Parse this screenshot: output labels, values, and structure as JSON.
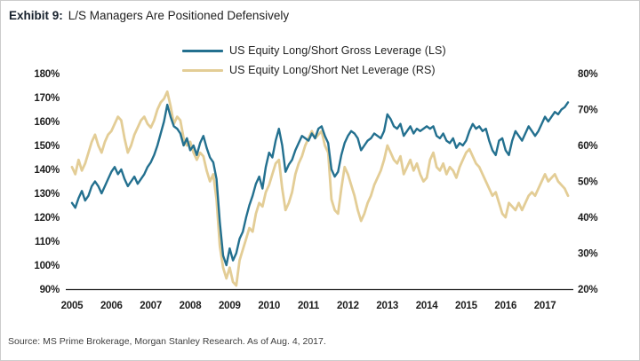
{
  "header": {
    "exhibit_label": "Exhibit 9:",
    "title": "L/S Managers Are Positioned Defensively"
  },
  "footer": {
    "source": "Source: MS Prime Brokerage, Morgan Stanley Research. As of Aug. 4, 2017."
  },
  "legend": {
    "items": [
      {
        "label": "US Equity Long/Short Gross Leverage (LS)",
        "color": "#23708f"
      },
      {
        "label": "US Equity Long/Short Net Leverage (RS)",
        "color": "#e3cd96"
      }
    ]
  },
  "chart_data": {
    "type": "line",
    "title": "L/S Managers Are Positioned Defensively",
    "frequency": "monthly",
    "x_start": "2005-01",
    "x_end": "2017-08",
    "x_tick_labels": [
      "2005",
      "2006",
      "2007",
      "2008",
      "2009",
      "2010",
      "2011",
      "2012",
      "2013",
      "2014",
      "2015",
      "2016",
      "2017"
    ],
    "grid": false,
    "legend_position": "top-center",
    "left_axis": {
      "unit": "%",
      "min": 90,
      "max": 180,
      "tick_step": 10,
      "tick_labels": [
        "180%",
        "170%",
        "160%",
        "150%",
        "140%",
        "130%",
        "120%",
        "110%",
        "100%",
        "90%"
      ]
    },
    "right_axis": {
      "unit": "%",
      "min": 20,
      "max": 80,
      "tick_step": 10,
      "tick_labels": [
        "80%",
        "70%",
        "60%",
        "50%",
        "40%",
        "30%",
        "20%"
      ]
    },
    "series": [
      {
        "name": "US Equity Long/Short Gross Leverage (LS)",
        "axis": "left",
        "color": "#23708f",
        "stroke_width": 2.4,
        "values": [
          126,
          124,
          128,
          131,
          127,
          129,
          133,
          135,
          133,
          130,
          133,
          136,
          139,
          141,
          138,
          140,
          136,
          133,
          135,
          137,
          134,
          136,
          138,
          141,
          143,
          146,
          150,
          155,
          160,
          167,
          162,
          158,
          157,
          155,
          150,
          153,
          148,
          150,
          146,
          151,
          154,
          149,
          145,
          143,
          136,
          118,
          104,
          100,
          107,
          102,
          105,
          111,
          114,
          120,
          125,
          129,
          134,
          137,
          132,
          141,
          147,
          145,
          152,
          157,
          150,
          139,
          142,
          144,
          148,
          151,
          154,
          153,
          152,
          155,
          153,
          157,
          158,
          154,
          151,
          140,
          137,
          139,
          146,
          151,
          154,
          156,
          155,
          153,
          148,
          150,
          152,
          153,
          155,
          154,
          153,
          156,
          163,
          161,
          158,
          157,
          159,
          154,
          156,
          158,
          155,
          157,
          156,
          157,
          158,
          157,
          158,
          154,
          153,
          155,
          152,
          151,
          153,
          149,
          151,
          150,
          152,
          156,
          159,
          157,
          158,
          156,
          157,
          152,
          148,
          146,
          152,
          153,
          148,
          146,
          152,
          156,
          154,
          152,
          155,
          158,
          156,
          154,
          156,
          159,
          162,
          160,
          162,
          164,
          163,
          165,
          166,
          168
        ]
      },
      {
        "name": "US Equity Long/Short Net Leverage (RS)",
        "axis": "right",
        "color": "#e3cd96",
        "stroke_width": 2.8,
        "values": [
          54,
          52,
          56,
          53,
          55,
          58,
          61,
          63,
          60,
          58,
          61,
          63,
          64,
          66,
          68,
          67,
          62,
          58,
          60,
          63,
          65,
          67,
          68,
          66,
          65,
          67,
          70,
          72,
          73,
          75,
          71,
          66,
          68,
          67,
          62,
          60,
          61,
          58,
          56,
          58,
          57,
          53,
          50,
          52,
          45,
          32,
          26,
          23,
          26,
          22,
          21,
          28,
          31,
          34,
          37,
          36,
          41,
          44,
          43,
          47,
          49,
          52,
          55,
          56,
          48,
          42,
          44,
          47,
          52,
          55,
          57,
          60,
          62,
          64,
          62,
          63,
          64,
          60,
          58,
          45,
          42,
          41,
          48,
          54,
          52,
          49,
          46,
          42,
          39,
          41,
          44,
          46,
          49,
          51,
          53,
          56,
          60,
          58,
          56,
          55,
          57,
          52,
          54,
          56,
          53,
          55,
          52,
          50,
          51,
          56,
          58,
          54,
          53,
          55,
          52,
          54,
          53,
          51,
          54,
          56,
          58,
          59,
          57,
          55,
          54,
          52,
          50,
          48,
          46,
          47,
          44,
          41,
          40,
          44,
          43,
          42,
          44,
          42,
          44,
          46,
          47,
          46,
          48,
          50,
          52,
          50,
          51,
          52,
          50,
          49,
          48,
          46
        ]
      }
    ]
  }
}
